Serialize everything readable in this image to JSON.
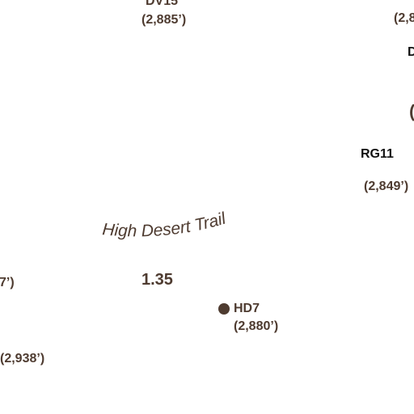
{
  "colors": {
    "label": "#4e3b30",
    "dark_label": "#111111",
    "background": "#ffffff"
  },
  "trail": {
    "name": "High Desert Trail",
    "segment_distance": "1.35"
  },
  "waypoints": {
    "dv15": {
      "code": "DV15",
      "elevation": "(2,885’)"
    },
    "hd7": {
      "code": "HD7",
      "elevation": "(2,880’)"
    },
    "rg11": {
      "code": "RG11",
      "elevation": "(2,849’)"
    },
    "top_right": {
      "code": "D",
      "elevation": "(2,8",
      "partial": "("
    },
    "left_top": {
      "elevation": "7’)"
    },
    "left_bottom": {
      "elevation": "(2,938’)"
    }
  }
}
